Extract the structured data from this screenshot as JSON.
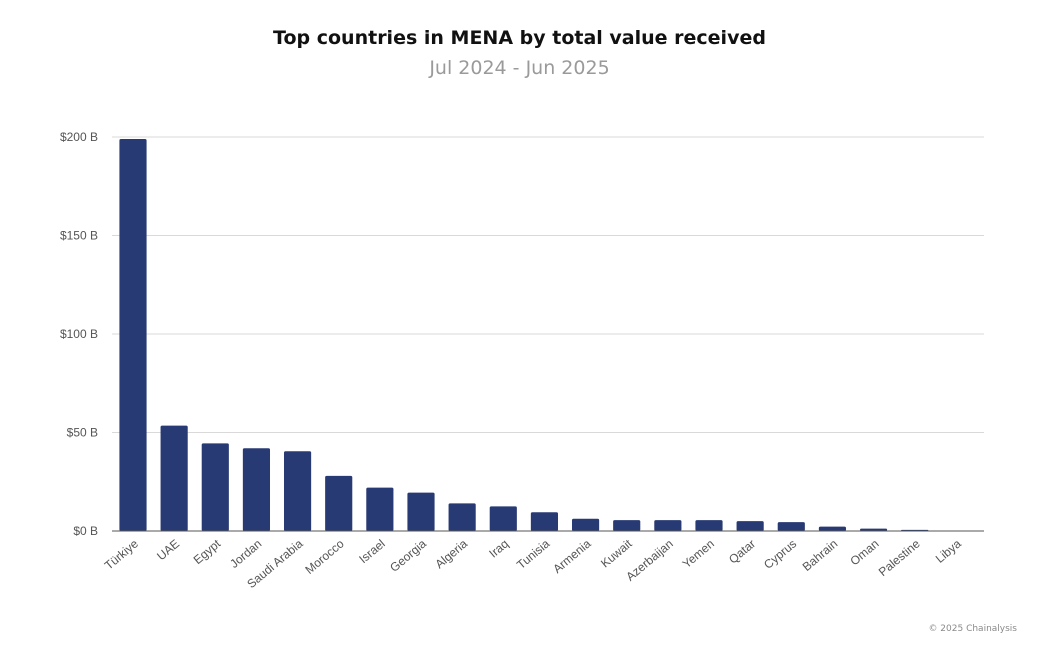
{
  "chart_data": {
    "type": "bar",
    "title": "Top countries in MENA by total value received",
    "subtitle": "Jul 2024 - Jun 2025",
    "xlabel": "",
    "ylabel": "",
    "ylim": [
      0,
      200
    ],
    "y_ticks": [
      0,
      50,
      100,
      150,
      200
    ],
    "y_tick_labels": [
      "$0 B",
      "$50 B",
      "$100 B",
      "$150 B",
      "$200 B"
    ],
    "grid": true,
    "bar_color": "#283a73",
    "categories": [
      "Türkiye",
      "UAE",
      "Egypt",
      "Jordan",
      "Saudi Arabia",
      "Morocco",
      "Israel",
      "Georgia",
      "Algeria",
      "Iraq",
      "Tunisia",
      "Armenia",
      "Kuwait",
      "Azerbaijan",
      "Yemen",
      "Qatar",
      "Cyprus",
      "Bahrain",
      "Oman",
      "Palestine",
      "Libya"
    ],
    "values": [
      199,
      53.5,
      44.5,
      42,
      40.5,
      28,
      22,
      19.5,
      14,
      12.5,
      9.5,
      6.2,
      5.5,
      5.5,
      5.5,
      5,
      4.5,
      2.2,
      1.2,
      0.6,
      0.1
    ]
  },
  "footer": {
    "credit": "© 2025 Chainalysis"
  }
}
